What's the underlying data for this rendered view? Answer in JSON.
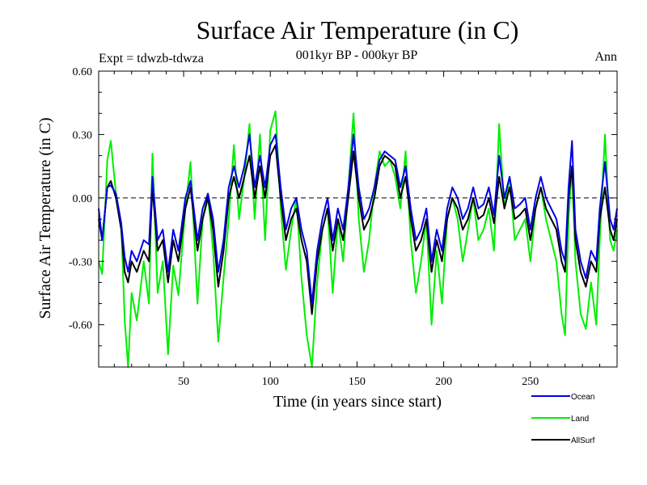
{
  "chart_data": {
    "type": "line",
    "title": "Surface Air Temperature (in C)",
    "subtitle": "001kyr BP - 000kyr BP",
    "left_note": "Expt = tdwzb-tdwza",
    "right_note": "Ann",
    "xlabel": "Time (in years since start)",
    "ylabel": "Surface Air Temperature (in C)",
    "xlim": [
      1,
      300
    ],
    "ylim": [
      -0.8,
      0.6
    ],
    "xticks": [
      50,
      100,
      150,
      200,
      250
    ],
    "yticks": [
      0.6,
      0.3,
      0.0,
      -0.3,
      -0.6
    ],
    "ytick_labels": [
      "0.60",
      "0.30",
      "0.00",
      "-0.30",
      "-0.60"
    ],
    "zero_line": true,
    "grid": false,
    "legend_position": "bottom-right",
    "series": [
      {
        "name": "Land",
        "color": "#00ee00",
        "knots": [
          [
            1,
            -0.3
          ],
          [
            3,
            -0.36
          ],
          [
            6,
            0.18
          ],
          [
            8,
            0.27
          ],
          [
            11,
            0.02
          ],
          [
            14,
            -0.12
          ],
          [
            16,
            -0.58
          ],
          [
            18,
            -0.8
          ],
          [
            20,
            -0.45
          ],
          [
            23,
            -0.58
          ],
          [
            27,
            -0.3
          ],
          [
            30,
            -0.5
          ],
          [
            32,
            0.21
          ],
          [
            35,
            -0.45
          ],
          [
            38,
            -0.3
          ],
          [
            41,
            -0.74
          ],
          [
            44,
            -0.32
          ],
          [
            47,
            -0.46
          ],
          [
            51,
            -0.05
          ],
          [
            54,
            0.17
          ],
          [
            58,
            -0.5
          ],
          [
            61,
            -0.1
          ],
          [
            64,
            0.02
          ],
          [
            67,
            -0.25
          ],
          [
            70,
            -0.68
          ],
          [
            73,
            -0.38
          ],
          [
            76,
            -0.1
          ],
          [
            79,
            0.25
          ],
          [
            82,
            -0.1
          ],
          [
            85,
            0.1
          ],
          [
            88,
            0.35
          ],
          [
            91,
            -0.1
          ],
          [
            94,
            0.3
          ],
          [
            97,
            -0.2
          ],
          [
            100,
            0.32
          ],
          [
            103,
            0.41
          ],
          [
            106,
            -0.05
          ],
          [
            109,
            -0.34
          ],
          [
            112,
            -0.15
          ],
          [
            115,
            0.0
          ],
          [
            118,
            -0.38
          ],
          [
            121,
            -0.65
          ],
          [
            124,
            -0.8
          ],
          [
            127,
            -0.4
          ],
          [
            130,
            -0.15
          ],
          [
            133,
            -0.05
          ],
          [
            136,
            -0.45
          ],
          [
            139,
            -0.1
          ],
          [
            142,
            -0.3
          ],
          [
            145,
            0.05
          ],
          [
            148,
            0.4
          ],
          [
            151,
            -0.1
          ],
          [
            154,
            -0.35
          ],
          [
            157,
            -0.2
          ],
          [
            160,
            0.05
          ],
          [
            163,
            0.22
          ],
          [
            166,
            0.15
          ],
          [
            169,
            0.18
          ],
          [
            172,
            0.1
          ],
          [
            175,
            -0.05
          ],
          [
            178,
            0.22
          ],
          [
            181,
            -0.2
          ],
          [
            184,
            -0.45
          ],
          [
            187,
            -0.3
          ],
          [
            190,
            -0.1
          ],
          [
            193,
            -0.6
          ],
          [
            196,
            -0.25
          ],
          [
            199,
            -0.5
          ],
          [
            202,
            -0.1
          ],
          [
            205,
            0.0
          ],
          [
            208,
            -0.1
          ],
          [
            211,
            -0.3
          ],
          [
            214,
            -0.15
          ],
          [
            217,
            0.0
          ],
          [
            220,
            -0.2
          ],
          [
            223,
            -0.15
          ],
          [
            226,
            -0.05
          ],
          [
            229,
            -0.25
          ],
          [
            232,
            0.35
          ],
          [
            235,
            -0.05
          ],
          [
            238,
            0.1
          ],
          [
            241,
            -0.2
          ],
          [
            244,
            -0.15
          ],
          [
            247,
            -0.1
          ],
          [
            250,
            -0.3
          ],
          [
            253,
            -0.05
          ],
          [
            256,
            0.05
          ],
          [
            259,
            -0.1
          ],
          [
            262,
            -0.2
          ],
          [
            265,
            -0.3
          ],
          [
            268,
            -0.55
          ],
          [
            270,
            -0.65
          ],
          [
            272,
            -0.1
          ],
          [
            274,
            0.15
          ],
          [
            276,
            -0.3
          ],
          [
            279,
            -0.55
          ],
          [
            282,
            -0.62
          ],
          [
            285,
            -0.4
          ],
          [
            288,
            -0.6
          ],
          [
            290,
            -0.2
          ],
          [
            293,
            0.3
          ],
          [
            296,
            -0.2
          ],
          [
            298,
            -0.25
          ],
          [
            300,
            -0.15
          ]
        ]
      },
      {
        "name": "AllSurf",
        "color": "#000000",
        "knots": [
          [
            1,
            -0.1
          ],
          [
            3,
            -0.2
          ],
          [
            6,
            0.05
          ],
          [
            8,
            0.08
          ],
          [
            11,
            0.0
          ],
          [
            14,
            -0.15
          ],
          [
            16,
            -0.35
          ],
          [
            18,
            -0.4
          ],
          [
            20,
            -0.3
          ],
          [
            23,
            -0.35
          ],
          [
            27,
            -0.25
          ],
          [
            30,
            -0.3
          ],
          [
            32,
            0.05
          ],
          [
            35,
            -0.25
          ],
          [
            38,
            -0.2
          ],
          [
            41,
            -0.4
          ],
          [
            44,
            -0.2
          ],
          [
            47,
            -0.3
          ],
          [
            51,
            -0.05
          ],
          [
            54,
            0.05
          ],
          [
            58,
            -0.25
          ],
          [
            61,
            -0.1
          ],
          [
            64,
            0.0
          ],
          [
            67,
            -0.15
          ],
          [
            70,
            -0.42
          ],
          [
            73,
            -0.25
          ],
          [
            76,
            0.0
          ],
          [
            79,
            0.1
          ],
          [
            82,
            0.0
          ],
          [
            85,
            0.1
          ],
          [
            88,
            0.2
          ],
          [
            91,
            0.0
          ],
          [
            94,
            0.15
          ],
          [
            97,
            0.0
          ],
          [
            100,
            0.2
          ],
          [
            103,
            0.25
          ],
          [
            106,
            0.0
          ],
          [
            109,
            -0.2
          ],
          [
            112,
            -0.1
          ],
          [
            115,
            -0.05
          ],
          [
            118,
            -0.2
          ],
          [
            121,
            -0.3
          ],
          [
            124,
            -0.55
          ],
          [
            127,
            -0.3
          ],
          [
            130,
            -0.15
          ],
          [
            133,
            -0.05
          ],
          [
            136,
            -0.25
          ],
          [
            139,
            -0.1
          ],
          [
            142,
            -0.2
          ],
          [
            145,
            0.0
          ],
          [
            148,
            0.22
          ],
          [
            151,
            0.0
          ],
          [
            154,
            -0.15
          ],
          [
            157,
            -0.1
          ],
          [
            160,
            0.0
          ],
          [
            163,
            0.15
          ],
          [
            166,
            0.2
          ],
          [
            169,
            0.18
          ],
          [
            172,
            0.15
          ],
          [
            175,
            0.0
          ],
          [
            178,
            0.1
          ],
          [
            181,
            -0.1
          ],
          [
            184,
            -0.25
          ],
          [
            187,
            -0.2
          ],
          [
            190,
            -0.1
          ],
          [
            193,
            -0.35
          ],
          [
            196,
            -0.2
          ],
          [
            199,
            -0.3
          ],
          [
            202,
            -0.1
          ],
          [
            205,
            0.0
          ],
          [
            208,
            -0.05
          ],
          [
            211,
            -0.15
          ],
          [
            214,
            -0.1
          ],
          [
            217,
            0.0
          ],
          [
            220,
            -0.1
          ],
          [
            223,
            -0.08
          ],
          [
            226,
            0.0
          ],
          [
            229,
            -0.12
          ],
          [
            232,
            0.1
          ],
          [
            235,
            -0.05
          ],
          [
            238,
            0.05
          ],
          [
            241,
            -0.1
          ],
          [
            244,
            -0.08
          ],
          [
            247,
            -0.05
          ],
          [
            250,
            -0.2
          ],
          [
            253,
            -0.05
          ],
          [
            256,
            0.05
          ],
          [
            259,
            -0.05
          ],
          [
            262,
            -0.1
          ],
          [
            265,
            -0.15
          ],
          [
            268,
            -0.3
          ],
          [
            270,
            -0.35
          ],
          [
            272,
            0.0
          ],
          [
            274,
            0.15
          ],
          [
            276,
            -0.2
          ],
          [
            279,
            -0.35
          ],
          [
            282,
            -0.42
          ],
          [
            285,
            -0.3
          ],
          [
            288,
            -0.35
          ],
          [
            290,
            -0.1
          ],
          [
            293,
            0.05
          ],
          [
            296,
            -0.15
          ],
          [
            298,
            -0.2
          ],
          [
            300,
            -0.1
          ]
        ]
      },
      {
        "name": "Ocean",
        "color": "#0000e6",
        "knots": [
          [
            1,
            -0.05
          ],
          [
            3,
            -0.2
          ],
          [
            6,
            0.05
          ],
          [
            8,
            0.06
          ],
          [
            11,
            0.02
          ],
          [
            14,
            -0.12
          ],
          [
            16,
            -0.28
          ],
          [
            18,
            -0.35
          ],
          [
            20,
            -0.25
          ],
          [
            23,
            -0.3
          ],
          [
            27,
            -0.2
          ],
          [
            30,
            -0.22
          ],
          [
            32,
            0.1
          ],
          [
            35,
            -0.2
          ],
          [
            38,
            -0.15
          ],
          [
            41,
            -0.35
          ],
          [
            44,
            -0.15
          ],
          [
            47,
            -0.25
          ],
          [
            51,
            0.0
          ],
          [
            54,
            0.08
          ],
          [
            58,
            -0.2
          ],
          [
            61,
            -0.05
          ],
          [
            64,
            0.02
          ],
          [
            67,
            -0.1
          ],
          [
            70,
            -0.35
          ],
          [
            73,
            -0.2
          ],
          [
            76,
            0.05
          ],
          [
            79,
            0.15
          ],
          [
            82,
            0.05
          ],
          [
            85,
            0.15
          ],
          [
            88,
            0.3
          ],
          [
            91,
            0.05
          ],
          [
            94,
            0.2
          ],
          [
            97,
            0.05
          ],
          [
            100,
            0.25
          ],
          [
            103,
            0.3
          ],
          [
            106,
            0.05
          ],
          [
            109,
            -0.15
          ],
          [
            112,
            -0.05
          ],
          [
            115,
            0.0
          ],
          [
            118,
            -0.15
          ],
          [
            121,
            -0.25
          ],
          [
            124,
            -0.5
          ],
          [
            127,
            -0.25
          ],
          [
            130,
            -0.1
          ],
          [
            133,
            0.0
          ],
          [
            136,
            -0.2
          ],
          [
            139,
            -0.05
          ],
          [
            142,
            -0.15
          ],
          [
            145,
            0.05
          ],
          [
            148,
            0.3
          ],
          [
            151,
            0.05
          ],
          [
            154,
            -0.1
          ],
          [
            157,
            -0.05
          ],
          [
            160,
            0.05
          ],
          [
            163,
            0.18
          ],
          [
            166,
            0.22
          ],
          [
            169,
            0.2
          ],
          [
            172,
            0.18
          ],
          [
            175,
            0.05
          ],
          [
            178,
            0.15
          ],
          [
            181,
            -0.05
          ],
          [
            184,
            -0.2
          ],
          [
            187,
            -0.15
          ],
          [
            190,
            -0.05
          ],
          [
            193,
            -0.3
          ],
          [
            196,
            -0.15
          ],
          [
            199,
            -0.25
          ],
          [
            202,
            -0.05
          ],
          [
            205,
            0.05
          ],
          [
            208,
            0.0
          ],
          [
            211,
            -0.1
          ],
          [
            214,
            -0.05
          ],
          [
            217,
            0.05
          ],
          [
            220,
            -0.05
          ],
          [
            223,
            -0.03
          ],
          [
            226,
            0.05
          ],
          [
            229,
            -0.08
          ],
          [
            232,
            0.2
          ],
          [
            235,
            0.0
          ],
          [
            238,
            0.1
          ],
          [
            241,
            -0.05
          ],
          [
            244,
            -0.03
          ],
          [
            247,
            0.0
          ],
          [
            250,
            -0.15
          ],
          [
            253,
            0.0
          ],
          [
            256,
            0.1
          ],
          [
            259,
            0.0
          ],
          [
            262,
            -0.05
          ],
          [
            265,
            -0.1
          ],
          [
            268,
            -0.25
          ],
          [
            270,
            -0.3
          ],
          [
            272,
            0.05
          ],
          [
            274,
            0.27
          ],
          [
            276,
            -0.15
          ],
          [
            279,
            -0.3
          ],
          [
            282,
            -0.38
          ],
          [
            285,
            -0.25
          ],
          [
            288,
            -0.3
          ],
          [
            290,
            -0.05
          ],
          [
            293,
            0.17
          ],
          [
            296,
            -0.1
          ],
          [
            298,
            -0.15
          ],
          [
            300,
            -0.05
          ]
        ]
      }
    ],
    "legend_order": [
      "Ocean",
      "Land",
      "AllSurf"
    ]
  }
}
